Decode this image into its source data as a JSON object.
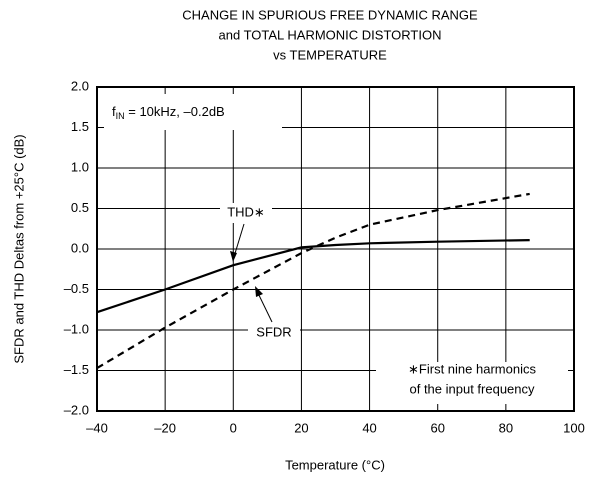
{
  "chart_data": {
    "type": "line",
    "title": [
      "CHANGE IN SPURIOUS FREE DYNAMIC RANGE",
      "and TOTAL HARMONIC DISTORTION",
      "vs TEMPERATURE"
    ],
    "xlabel": "Temperature (°C)",
    "ylabel": "SFDR and THD Deltas from +25°C (dB)",
    "x": [
      -40,
      -20,
      0,
      20,
      30,
      40,
      60,
      87
    ],
    "series": [
      {
        "name": "THD∗",
        "color": "#000000",
        "dash": false,
        "values": [
          -0.78,
          -0.5,
          -0.2,
          0.02,
          0.05,
          0.07,
          0.09,
          0.11
        ]
      },
      {
        "name": "SFDR",
        "color": "#000000",
        "dash": true,
        "values": [
          -1.47,
          -0.97,
          -0.5,
          -0.05,
          0.14,
          0.3,
          0.48,
          0.68
        ]
      }
    ],
    "condition": {
      "base": "f",
      "sub": "IN",
      "rest": " = 10kHz, –0.2dB"
    },
    "footnote": [
      "∗First nine harmonics",
      "of the input frequency"
    ],
    "xlim": [
      -40,
      100
    ],
    "xticks": [
      {
        "value": -40,
        "label": "–40"
      },
      {
        "value": -20,
        "label": "–20"
      },
      0,
      20,
      40,
      60,
      80,
      100
    ],
    "ylim": [
      -2,
      2
    ],
    "yticks": [
      {
        "value": -2,
        "label": "–2.0"
      },
      {
        "value": -1.5,
        "label": "–1.5"
      },
      {
        "value": -1,
        "label": "–1.0"
      },
      {
        "value": -0.5,
        "label": "–0.5"
      },
      {
        "value": 0,
        "label": "0.0"
      },
      0.5,
      {
        "value": 1,
        "label": "1.0"
      },
      1.5,
      {
        "value": 2,
        "label": "2.0"
      }
    ],
    "grid": true
  }
}
